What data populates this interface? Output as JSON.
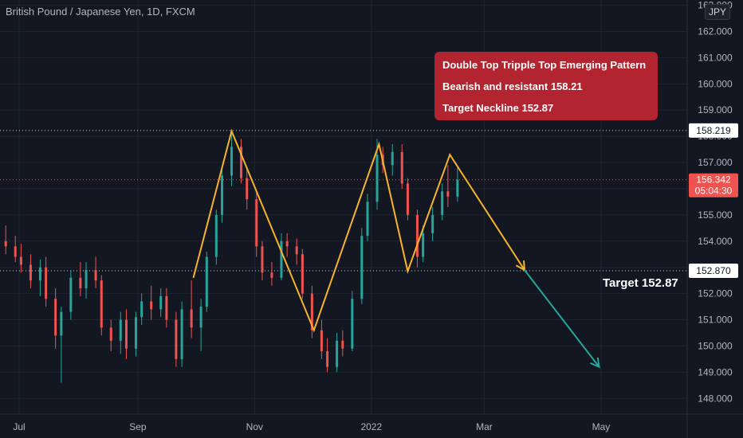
{
  "header": {
    "symbol_title": "British Pound / Japanese Yen, 1D, FXCM",
    "currency_button": "JPY"
  },
  "annotation": {
    "lines": [
      "Double Top Tripple Top Emerging Pattern",
      "Bearish and resistant 158.21",
      "Target Neckline 152.87"
    ]
  },
  "target_label": "Target 152.87",
  "colors": {
    "background": "#131722",
    "up": "#26a69a",
    "down": "#ef5350",
    "pattern": "#f7b32b",
    "projection": "#26a69a",
    "note": "#b2242f"
  },
  "chart_data": {
    "type": "candlestick",
    "y_axis": {
      "min": 147.4,
      "max": 163.2,
      "ticks": [
        148.0,
        149.0,
        150.0,
        151.0,
        152.0,
        153.0,
        154.0,
        155.0,
        156.0,
        157.0,
        158.0,
        159.0,
        160.0,
        161.0,
        162.0,
        163.0
      ],
      "position": "right"
    },
    "x_axis": {
      "labels": [
        "Jul",
        "Sep",
        "Nov",
        "2022",
        "Mar",
        "May"
      ]
    },
    "price_labels": [
      {
        "value": 158.219,
        "text": "158.219",
        "style": "level"
      },
      {
        "value": 156.342,
        "text": "156.342",
        "countdown": "05:04:30",
        "style": "last"
      },
      {
        "value": 152.87,
        "text": "152.870",
        "style": "level"
      }
    ],
    "horizontal_levels": [
      158.219,
      152.87
    ],
    "last_price": 156.342,
    "grid": true,
    "pattern": [
      {
        "date": "2021-09-30",
        "value": 152.6
      },
      {
        "date": "2021-10-20",
        "value": 158.2
      },
      {
        "date": "2021-12-02",
        "value": 150.6
      },
      {
        "date": "2022-01-05",
        "value": 157.7
      },
      {
        "date": "2022-01-20",
        "value": 152.85
      },
      {
        "date": "2022-02-11",
        "value": 157.3
      },
      {
        "date": "2022-03-22",
        "value": 152.9
      }
    ],
    "projection": [
      {
        "date": "2022-03-22",
        "value": 152.9
      },
      {
        "date": "2022-04-30",
        "value": 149.2
      }
    ],
    "series": [
      {
        "date": "2021-06-24",
        "open": 154.0,
        "high": 154.6,
        "low": 153.5,
        "close": 153.8
      },
      {
        "date": "2021-06-29",
        "open": 153.8,
        "high": 154.2,
        "low": 153.2,
        "close": 153.4
      },
      {
        "date": "2021-07-02",
        "open": 153.4,
        "high": 153.9,
        "low": 152.8,
        "close": 153.1
      },
      {
        "date": "2021-07-07",
        "open": 153.1,
        "high": 153.5,
        "low": 152.2,
        "close": 152.5
      },
      {
        "date": "2021-07-12",
        "open": 152.5,
        "high": 153.3,
        "low": 151.9,
        "close": 153.0
      },
      {
        "date": "2021-07-15",
        "open": 153.0,
        "high": 153.4,
        "low": 151.5,
        "close": 151.8
      },
      {
        "date": "2021-07-20",
        "open": 151.8,
        "high": 152.2,
        "low": 149.9,
        "close": 150.4
      },
      {
        "date": "2021-07-23",
        "open": 150.4,
        "high": 151.5,
        "low": 148.6,
        "close": 151.3
      },
      {
        "date": "2021-07-28",
        "open": 151.3,
        "high": 152.9,
        "low": 151.0,
        "close": 152.6
      },
      {
        "date": "2021-08-02",
        "open": 152.6,
        "high": 153.2,
        "low": 151.9,
        "close": 152.2
      },
      {
        "date": "2021-08-05",
        "open": 152.2,
        "high": 153.2,
        "low": 151.8,
        "close": 152.9
      },
      {
        "date": "2021-08-10",
        "open": 152.9,
        "high": 153.4,
        "low": 152.2,
        "close": 152.5
      },
      {
        "date": "2021-08-13",
        "open": 152.5,
        "high": 152.7,
        "low": 150.4,
        "close": 150.7
      },
      {
        "date": "2021-08-18",
        "open": 150.7,
        "high": 151.0,
        "low": 149.8,
        "close": 150.2
      },
      {
        "date": "2021-08-23",
        "open": 150.2,
        "high": 151.3,
        "low": 149.7,
        "close": 151.0
      },
      {
        "date": "2021-08-26",
        "open": 151.0,
        "high": 151.4,
        "low": 149.5,
        "close": 149.9
      },
      {
        "date": "2021-08-31",
        "open": 149.9,
        "high": 151.3,
        "low": 149.6,
        "close": 151.1
      },
      {
        "date": "2021-09-03",
        "open": 151.1,
        "high": 152.0,
        "low": 150.8,
        "close": 151.7
      },
      {
        "date": "2021-09-08",
        "open": 151.7,
        "high": 152.3,
        "low": 151.0,
        "close": 151.4
      },
      {
        "date": "2021-09-13",
        "open": 151.4,
        "high": 152.2,
        "low": 151.1,
        "close": 151.9
      },
      {
        "date": "2021-09-16",
        "open": 151.9,
        "high": 152.2,
        "low": 150.7,
        "close": 151.0
      },
      {
        "date": "2021-09-21",
        "open": 151.0,
        "high": 151.3,
        "low": 149.2,
        "close": 149.5
      },
      {
        "date": "2021-09-24",
        "open": 149.5,
        "high": 151.7,
        "low": 149.2,
        "close": 151.4
      },
      {
        "date": "2021-09-29",
        "open": 151.4,
        "high": 152.5,
        "low": 150.3,
        "close": 150.7
      },
      {
        "date": "2021-10-04",
        "open": 150.7,
        "high": 151.8,
        "low": 149.8,
        "close": 151.5
      },
      {
        "date": "2021-10-07",
        "open": 151.5,
        "high": 153.6,
        "low": 151.3,
        "close": 153.4
      },
      {
        "date": "2021-10-12",
        "open": 153.4,
        "high": 155.2,
        "low": 153.1,
        "close": 155.0
      },
      {
        "date": "2021-10-15",
        "open": 155.0,
        "high": 156.8,
        "low": 154.7,
        "close": 156.5
      },
      {
        "date": "2021-10-20",
        "open": 156.5,
        "high": 158.2,
        "low": 156.1,
        "close": 157.6
      },
      {
        "date": "2021-10-25",
        "open": 157.6,
        "high": 157.9,
        "low": 156.2,
        "close": 156.4
      },
      {
        "date": "2021-10-28",
        "open": 156.4,
        "high": 156.8,
        "low": 155.2,
        "close": 155.6
      },
      {
        "date": "2021-11-02",
        "open": 155.6,
        "high": 155.9,
        "low": 153.4,
        "close": 153.8
      },
      {
        "date": "2021-11-05",
        "open": 153.8,
        "high": 154.0,
        "low": 152.5,
        "close": 152.8
      },
      {
        "date": "2021-11-10",
        "open": 152.8,
        "high": 153.2,
        "low": 152.3,
        "close": 152.6
      },
      {
        "date": "2021-11-15",
        "open": 152.6,
        "high": 154.3,
        "low": 152.5,
        "close": 154.0
      },
      {
        "date": "2021-11-18",
        "open": 154.0,
        "high": 154.3,
        "low": 153.4,
        "close": 153.8
      },
      {
        "date": "2021-11-23",
        "open": 153.8,
        "high": 154.1,
        "low": 153.1,
        "close": 153.5
      },
      {
        "date": "2021-11-26",
        "open": 153.5,
        "high": 153.7,
        "low": 151.8,
        "close": 152.0
      },
      {
        "date": "2021-12-01",
        "open": 152.0,
        "high": 152.3,
        "low": 150.3,
        "close": 150.6
      },
      {
        "date": "2021-12-06",
        "open": 150.6,
        "high": 151.0,
        "low": 149.5,
        "close": 149.8
      },
      {
        "date": "2021-12-09",
        "open": 149.8,
        "high": 150.3,
        "low": 149.0,
        "close": 149.2
      },
      {
        "date": "2021-12-14",
        "open": 149.2,
        "high": 150.5,
        "low": 149.0,
        "close": 150.2
      },
      {
        "date": "2021-12-17",
        "open": 150.2,
        "high": 150.6,
        "low": 149.6,
        "close": 149.9
      },
      {
        "date": "2021-12-22",
        "open": 149.9,
        "high": 152.1,
        "low": 149.8,
        "close": 151.8
      },
      {
        "date": "2021-12-27",
        "open": 151.8,
        "high": 154.5,
        "low": 151.6,
        "close": 154.2
      },
      {
        "date": "2021-12-30",
        "open": 154.2,
        "high": 155.8,
        "low": 154.0,
        "close": 155.5
      },
      {
        "date": "2022-01-04",
        "open": 155.5,
        "high": 157.9,
        "low": 155.2,
        "close": 157.3
      },
      {
        "date": "2022-01-07",
        "open": 157.3,
        "high": 157.6,
        "low": 156.6,
        "close": 156.9
      },
      {
        "date": "2022-01-12",
        "open": 156.9,
        "high": 157.7,
        "low": 156.5,
        "close": 157.4
      },
      {
        "date": "2022-01-17",
        "open": 157.4,
        "high": 157.7,
        "low": 156.0,
        "close": 156.2
      },
      {
        "date": "2022-01-20",
        "open": 156.2,
        "high": 156.4,
        "low": 154.8,
        "close": 155.0
      },
      {
        "date": "2022-01-25",
        "open": 155.0,
        "high": 155.2,
        "low": 153.0,
        "close": 153.4
      },
      {
        "date": "2022-01-28",
        "open": 153.4,
        "high": 154.6,
        "low": 153.2,
        "close": 154.3
      },
      {
        "date": "2022-02-02",
        "open": 154.3,
        "high": 155.3,
        "low": 154.0,
        "close": 155.0
      },
      {
        "date": "2022-02-07",
        "open": 155.0,
        "high": 156.2,
        "low": 154.8,
        "close": 155.9
      },
      {
        "date": "2022-02-10",
        "open": 155.9,
        "high": 156.9,
        "low": 155.3,
        "close": 155.7
      },
      {
        "date": "2022-02-15",
        "open": 155.7,
        "high": 156.8,
        "low": 155.5,
        "close": 156.342
      }
    ]
  }
}
